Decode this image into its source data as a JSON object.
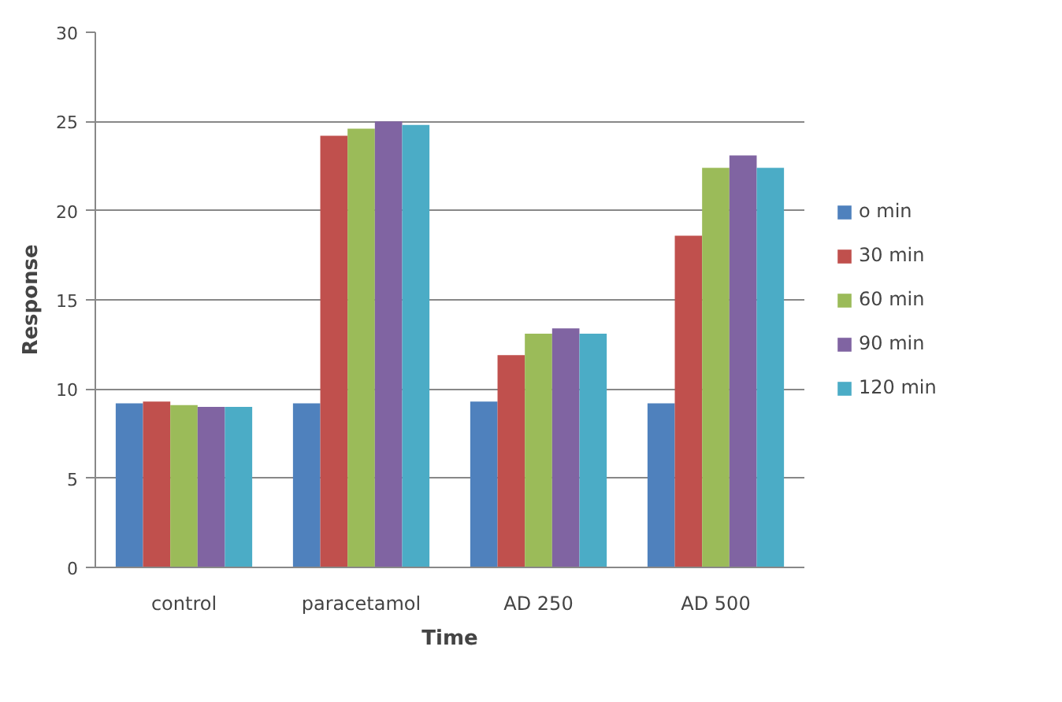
{
  "chart_data": {
    "type": "bar",
    "xlabel": "Time",
    "ylabel": "Response",
    "categories": [
      "control",
      "paracetamol",
      "AD 250",
      "AD 500"
    ],
    "series": [
      {
        "name": "o min",
        "color": "#4f81bd",
        "values": [
          9.2,
          9.2,
          9.3,
          9.2
        ]
      },
      {
        "name": "30 min",
        "color": "#c0504d",
        "values": [
          9.3,
          24.2,
          11.9,
          18.6
        ]
      },
      {
        "name": "60 min",
        "color": "#9bbb59",
        "values": [
          9.1,
          24.6,
          13.1,
          22.4
        ]
      },
      {
        "name": "90 min",
        "color": "#8064a2",
        "values": [
          9.0,
          25.0,
          13.4,
          23.1
        ]
      },
      {
        "name": "120 min",
        "color": "#4bacc6",
        "values": [
          9.0,
          24.8,
          13.1,
          22.4
        ]
      }
    ],
    "ylim": [
      0,
      30
    ],
    "yticks": [
      0,
      5,
      10,
      15,
      20,
      25,
      30
    ],
    "grid": "y",
    "legend": "right"
  }
}
